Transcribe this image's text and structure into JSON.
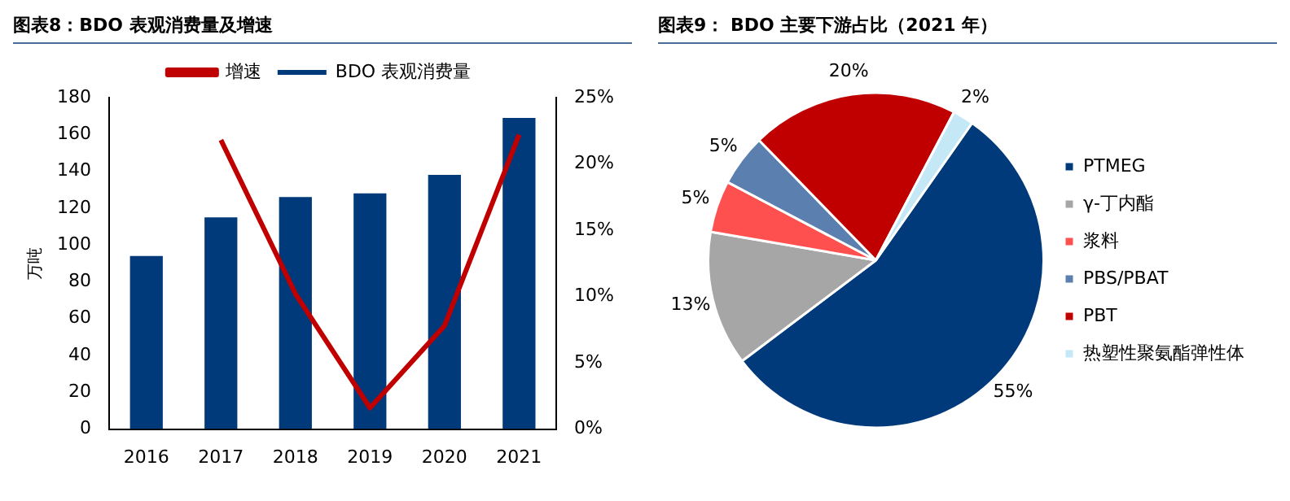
{
  "chart_data": [
    {
      "type": "bar",
      "title": "图表8：BDO 表观消费量及增速",
      "ylabel": "万吨",
      "categories": [
        "2016",
        "2017",
        "2018",
        "2019",
        "2020",
        "2021"
      ],
      "series": [
        {
          "name": "BDO 表观消费量",
          "type": "bar",
          "color": "#003a7a",
          "values": [
            94,
            115,
            126,
            128,
            138,
            169
          ]
        },
        {
          "name": "增速",
          "type": "line",
          "axis": "y2",
          "color": "#c00000",
          "values": [
            null,
            21.8,
            10.2,
            1.6,
            7.8,
            22.2
          ]
        }
      ],
      "ylim": [
        0,
        180
      ],
      "yticks": [
        0,
        20,
        40,
        60,
        80,
        100,
        120,
        140,
        160,
        180
      ],
      "y2lim": [
        0,
        25
      ],
      "y2ticks": [
        {
          "value": 0,
          "label": "0%"
        },
        {
          "value": 5,
          "label": "5%"
        },
        {
          "value": 10,
          "label": "10%"
        },
        {
          "value": 15,
          "label": "15%"
        },
        {
          "value": 20,
          "label": "20%"
        },
        {
          "value": 25,
          "label": "25%"
        }
      ],
      "grid": false,
      "legend": "top",
      "marker": "none"
    },
    {
      "type": "pie",
      "title": "图表9：  BDO 主要下游占比（2021 年）",
      "categories": [
        "PTMEG",
        "γ-丁内酯",
        "浆料",
        "PBS/PBAT",
        "PBT",
        "热塑性聚氨酯弹性体"
      ],
      "values": [
        55,
        13,
        5,
        5,
        20,
        2
      ],
      "colors": [
        "#003a7a",
        "#a6a6a6",
        "#ff5050",
        "#5b7fae",
        "#c00000",
        "#c5e8f7"
      ],
      "value_labels": [
        "55%",
        "13%",
        "5%",
        "5%",
        "20%",
        "2%"
      ],
      "legend": "right"
    }
  ]
}
